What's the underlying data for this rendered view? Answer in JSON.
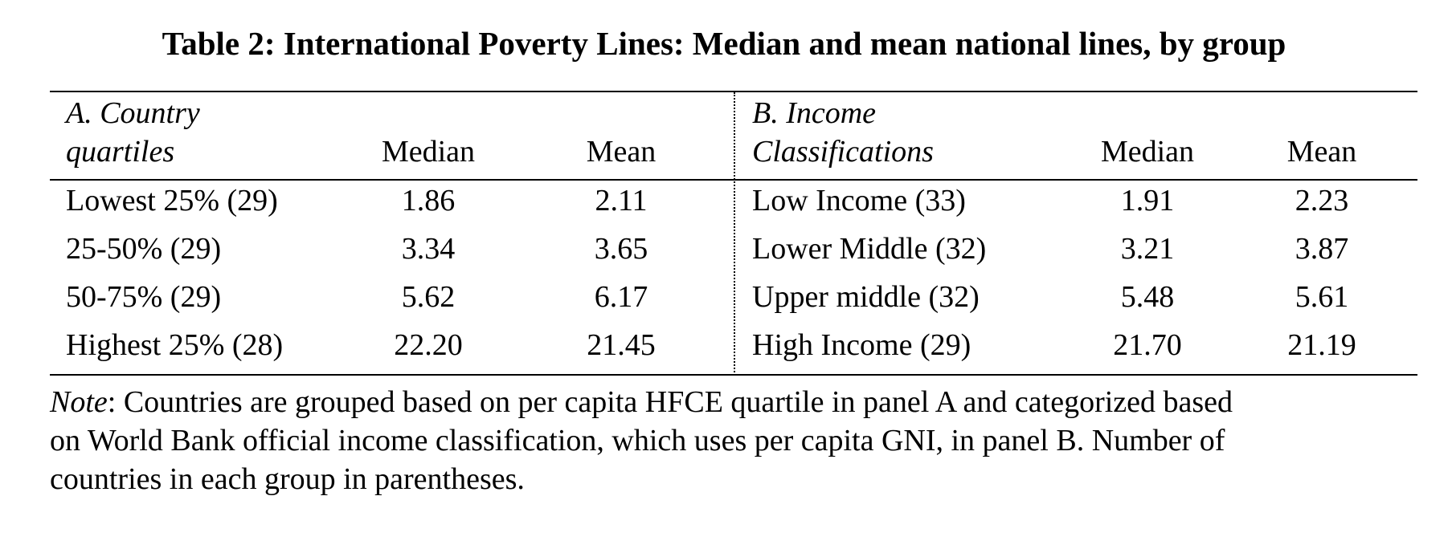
{
  "caption": "Table 2: International Poverty Lines: Median and mean national lines, by group",
  "panel_a": {
    "header_line1": "A. Country",
    "header_line2": "quartiles",
    "col_median": "Median",
    "col_mean": "Mean",
    "rows": [
      {
        "label": "Lowest 25% (29)",
        "median": "1.86",
        "mean": "2.11"
      },
      {
        "label": "25-50% (29)",
        "median": "3.34",
        "mean": "3.65"
      },
      {
        "label": "50-75% (29)",
        "median": "5.62",
        "mean": "6.17"
      },
      {
        "label": "Highest 25% (28)",
        "median": "22.20",
        "mean": "21.45"
      }
    ]
  },
  "panel_b": {
    "header_line1": "B. Income",
    "header_line2": "Classifications",
    "col_median": "Median",
    "col_mean": "Mean",
    "rows": [
      {
        "label": "Low Income (33)",
        "median": "1.91",
        "mean": "2.23"
      },
      {
        "label": "Lower Middle (32)",
        "median": "3.21",
        "mean": "3.87"
      },
      {
        "label": "Upper middle (32)",
        "median": "5.48",
        "mean": "5.61"
      },
      {
        "label": "High Income (29)",
        "median": "21.70",
        "mean": "21.19"
      }
    ]
  },
  "note": {
    "label": "Note",
    "line1": ": Countries are grouped based on per capita HFCE quartile in panel A and categorized based",
    "line2": "on World Bank official income classification, which uses per capita GNI, in panel B.  Number of",
    "line3": "countries in each group in parentheses."
  }
}
